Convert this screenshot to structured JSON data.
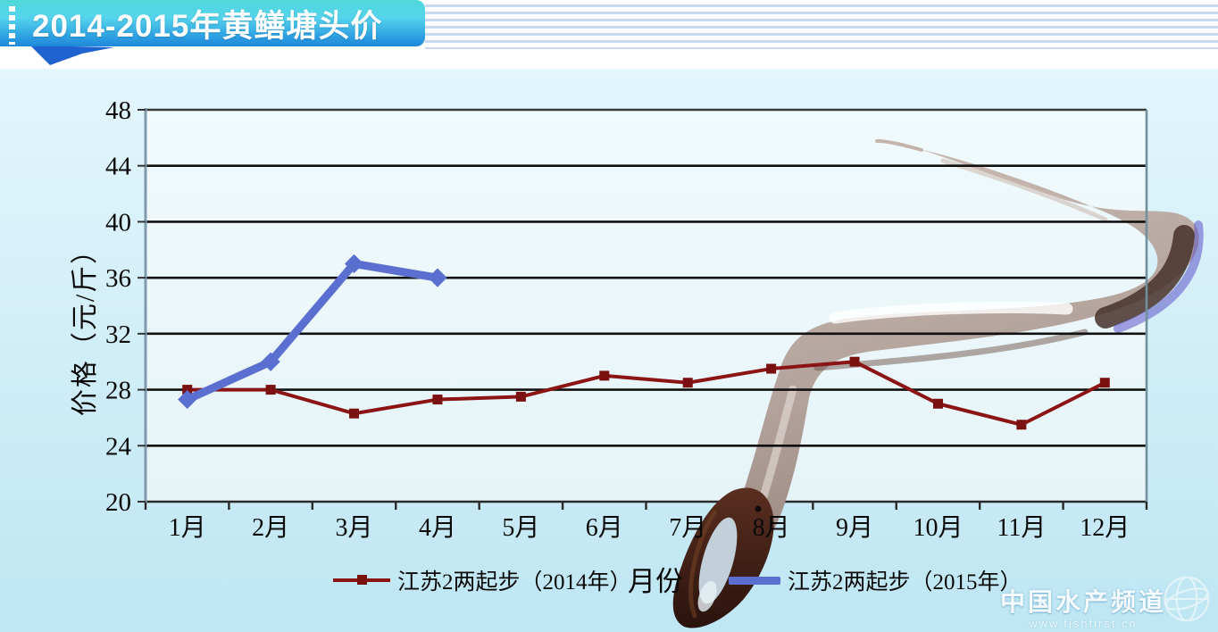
{
  "banner": {
    "title": "2014-2015年黄鳝塘头价"
  },
  "chart_data": {
    "type": "line",
    "title": "2014-2015年黄鳝塘头价",
    "xlabel": "月份",
    "ylabel": "价格（元/斤）",
    "ylim": [
      20,
      48
    ],
    "yticks": [
      20,
      24,
      28,
      32,
      36,
      40,
      44,
      48
    ],
    "grid": true,
    "legend_position": "bottom",
    "categories": [
      "1月",
      "2月",
      "3月",
      "4月",
      "5月",
      "6月",
      "7月",
      "8月",
      "9月",
      "10月",
      "11月",
      "12月"
    ],
    "series": [
      {
        "name": "江苏2两起步（2014年）",
        "color": "#8b1414",
        "marker": "square",
        "values": [
          28,
          28,
          26.3,
          27.3,
          27.5,
          29,
          28.5,
          29.5,
          30,
          27,
          25.5,
          28.5
        ]
      },
      {
        "name": "江苏2两起步（2015年）",
        "color": "#5a6fd0",
        "marker": "diamond",
        "values": [
          27.3,
          30,
          37,
          36
        ]
      }
    ]
  },
  "watermark": {
    "name": "中国水产频道",
    "url": "www.fishfirst.cn"
  }
}
